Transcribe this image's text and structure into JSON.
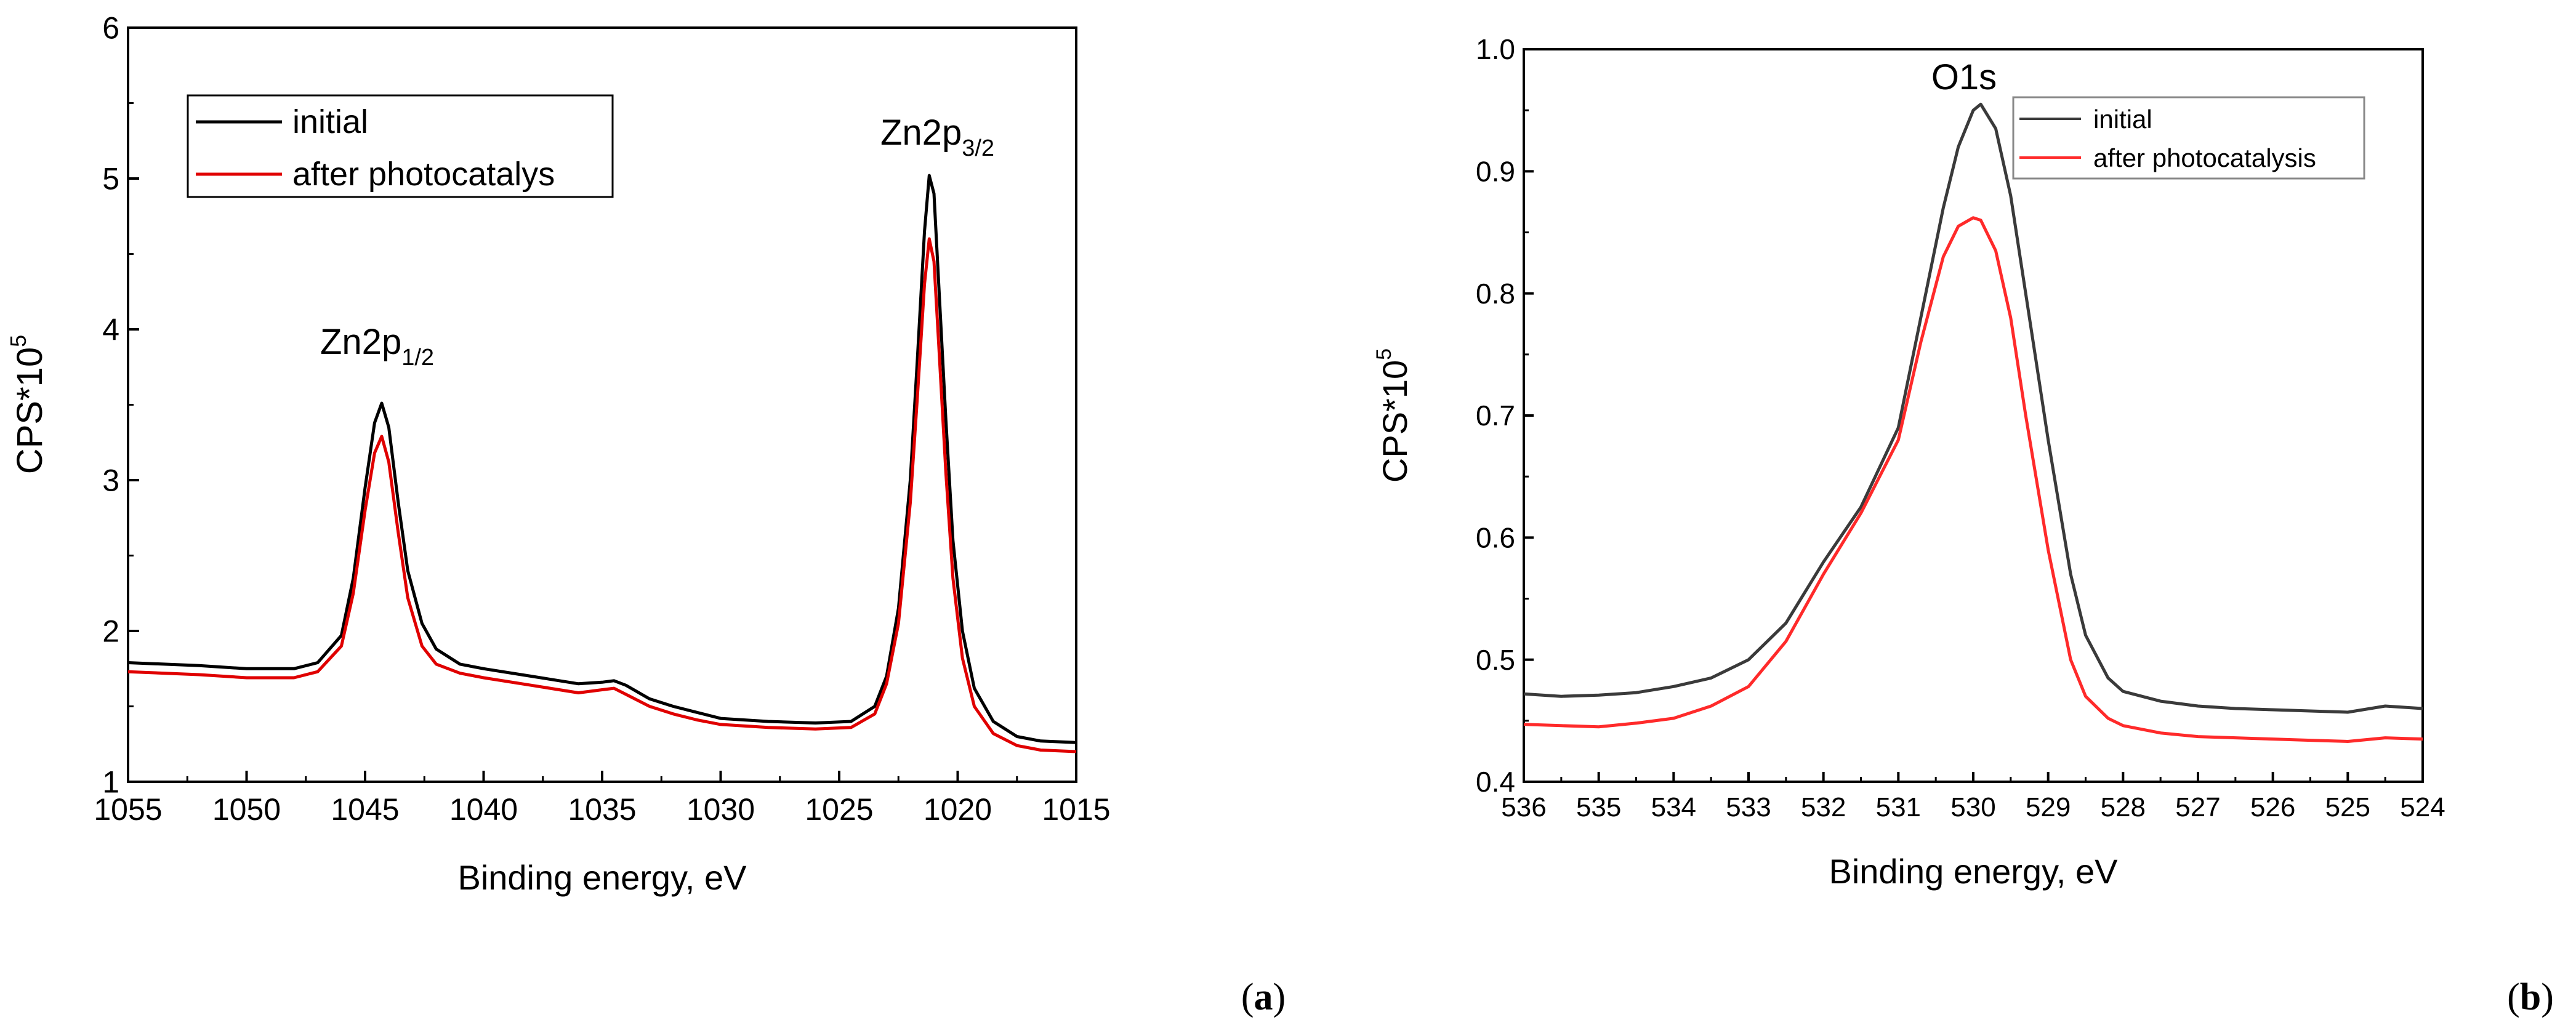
{
  "chart_data": [
    {
      "panel": "a",
      "panel_label": "(a)",
      "type": "line",
      "title": "",
      "xlabel": "Binding energy, eV",
      "ylabel": "CPS*10",
      "ylabel_exp": "5",
      "xlim": [
        1055,
        1015
      ],
      "ylim": [
        1,
        6
      ],
      "x_ticks": [
        1055,
        1050,
        1045,
        1040,
        1035,
        1030,
        1025,
        1020,
        1015
      ],
      "y_ticks": [
        1,
        2,
        3,
        4,
        5,
        6
      ],
      "legend_position": "top-left",
      "annotations": [
        {
          "base": "Zn2p",
          "sub": "1/2",
          "x": 1044.3,
          "y": 4.05
        },
        {
          "base": "Zn2p",
          "sub": "3/2",
          "x": 1021.2,
          "y": 5.37
        }
      ],
      "series": [
        {
          "name": "initial",
          "color": "#000000",
          "x": [
            1055,
            1052,
            1050,
            1048,
            1047,
            1046,
            1045.5,
            1045,
            1044.6,
            1044.3,
            1044.0,
            1043.6,
            1043.2,
            1042.6,
            1042,
            1041,
            1040,
            1038,
            1036,
            1035,
            1034.5,
            1034,
            1033,
            1032,
            1031,
            1030,
            1028,
            1026,
            1024.5,
            1023.5,
            1023,
            1022.5,
            1022,
            1021.7,
            1021.4,
            1021.2,
            1021.0,
            1020.8,
            1020.5,
            1020.2,
            1019.8,
            1019.3,
            1018.5,
            1017.5,
            1016.5,
            1015
          ],
          "y": [
            1.79,
            1.77,
            1.75,
            1.75,
            1.79,
            1.97,
            2.35,
            2.95,
            3.38,
            3.51,
            3.35,
            2.85,
            2.4,
            2.05,
            1.88,
            1.78,
            1.75,
            1.7,
            1.65,
            1.66,
            1.67,
            1.64,
            1.55,
            1.5,
            1.46,
            1.42,
            1.4,
            1.39,
            1.4,
            1.5,
            1.7,
            2.15,
            3.0,
            3.8,
            4.65,
            5.02,
            4.9,
            4.3,
            3.4,
            2.6,
            2.0,
            1.62,
            1.4,
            1.3,
            1.27,
            1.26
          ]
        },
        {
          "name": "after photocatalys",
          "color": "#e00000",
          "x": [
            1055,
            1052,
            1050,
            1048,
            1047,
            1046,
            1045.5,
            1045,
            1044.6,
            1044.3,
            1044.0,
            1043.6,
            1043.2,
            1042.6,
            1042,
            1041,
            1040,
            1038,
            1036,
            1035,
            1034.5,
            1034,
            1033,
            1032,
            1031,
            1030,
            1028,
            1026,
            1024.5,
            1023.5,
            1023,
            1022.5,
            1022,
            1021.7,
            1021.4,
            1021.2,
            1021.0,
            1020.8,
            1020.5,
            1020.2,
            1019.8,
            1019.3,
            1018.5,
            1017.5,
            1016.5,
            1015
          ],
          "y": [
            1.73,
            1.71,
            1.69,
            1.69,
            1.73,
            1.9,
            2.25,
            2.8,
            3.18,
            3.29,
            3.12,
            2.65,
            2.22,
            1.9,
            1.78,
            1.72,
            1.69,
            1.64,
            1.59,
            1.61,
            1.62,
            1.58,
            1.5,
            1.45,
            1.41,
            1.38,
            1.36,
            1.35,
            1.36,
            1.45,
            1.65,
            2.05,
            2.85,
            3.55,
            4.3,
            4.6,
            4.45,
            3.9,
            3.05,
            2.35,
            1.82,
            1.5,
            1.32,
            1.24,
            1.21,
            1.2
          ]
        }
      ]
    },
    {
      "panel": "b",
      "panel_label": "(b)",
      "type": "line",
      "title": "",
      "xlabel": "Binding energy, eV",
      "ylabel": "CPS*10",
      "ylabel_exp": "5",
      "xlim": [
        536,
        524
      ],
      "ylim": [
        0.4,
        1.0
      ],
      "x_ticks": [
        536,
        535,
        534,
        533,
        532,
        531,
        530,
        529,
        528,
        527,
        526,
        525,
        524
      ],
      "y_ticks": [
        0.4,
        0.5,
        0.6,
        0.7,
        0.8,
        0.9,
        1.0
      ],
      "legend_position": "top-right",
      "annotations": [
        {
          "base": "O1s",
          "sub": "",
          "x": 530.4,
          "y": 0.972
        }
      ],
      "series": [
        {
          "name": "initial",
          "color": "#3a3a3a",
          "x": [
            536,
            535.5,
            535,
            534.5,
            534,
            533.5,
            533,
            532.5,
            532,
            531.5,
            531,
            530.7,
            530.4,
            530.2,
            530.0,
            529.9,
            529.7,
            529.5,
            529.3,
            529.0,
            528.7,
            528.5,
            528.2,
            528.0,
            527.5,
            527,
            526.5,
            526,
            525.5,
            525,
            524.5,
            524
          ],
          "y": [
            0.472,
            0.47,
            0.471,
            0.473,
            0.478,
            0.485,
            0.5,
            0.53,
            0.58,
            0.625,
            0.69,
            0.78,
            0.87,
            0.92,
            0.95,
            0.955,
            0.935,
            0.88,
            0.8,
            0.68,
            0.57,
            0.52,
            0.485,
            0.474,
            0.466,
            0.462,
            0.46,
            0.459,
            0.458,
            0.457,
            0.462,
            0.46
          ]
        },
        {
          "name": "after photocatalysis",
          "color": "#ff2a2a",
          "x": [
            536,
            535.5,
            535,
            534.5,
            534,
            533.5,
            533,
            532.5,
            532,
            531.5,
            531,
            530.7,
            530.4,
            530.2,
            530.0,
            529.9,
            529.7,
            529.5,
            529.3,
            529.0,
            528.7,
            528.5,
            528.2,
            528.0,
            527.5,
            527,
            526.5,
            526,
            525.5,
            525,
            524.5,
            524
          ],
          "y": [
            0.447,
            0.446,
            0.445,
            0.448,
            0.452,
            0.462,
            0.478,
            0.515,
            0.57,
            0.62,
            0.68,
            0.76,
            0.83,
            0.855,
            0.862,
            0.86,
            0.835,
            0.78,
            0.7,
            0.59,
            0.5,
            0.47,
            0.452,
            0.446,
            0.44,
            0.437,
            0.436,
            0.435,
            0.434,
            0.433,
            0.436,
            0.435
          ]
        }
      ]
    }
  ]
}
